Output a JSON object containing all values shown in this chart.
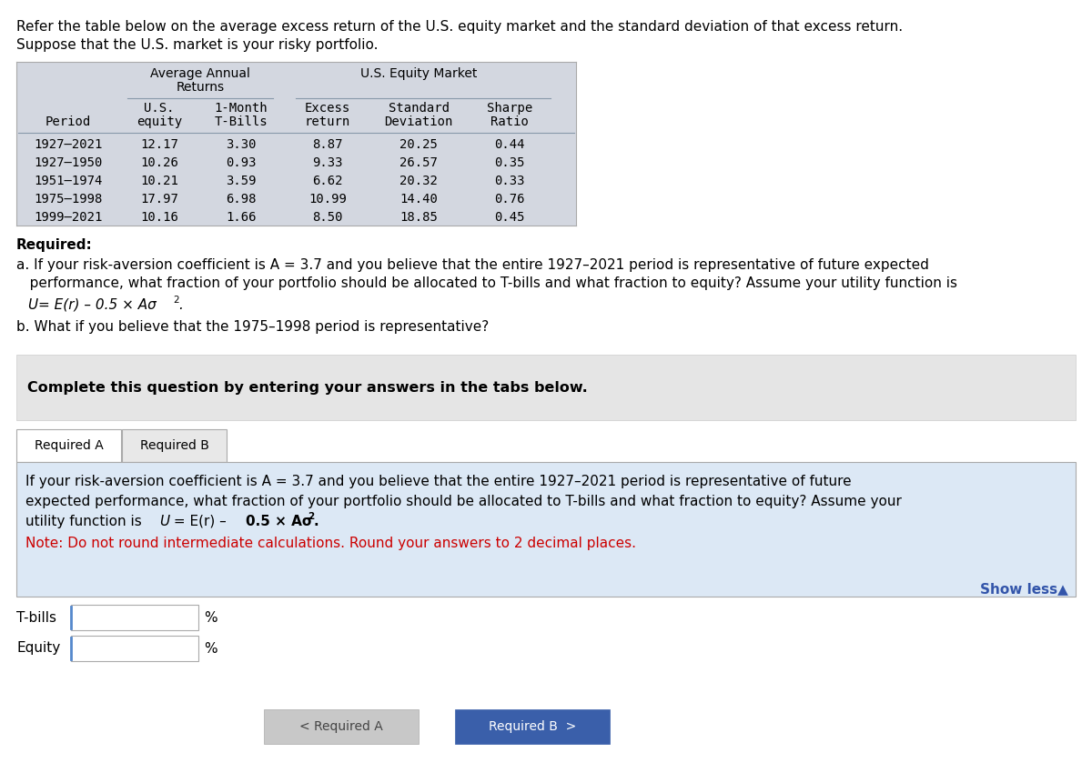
{
  "intro_line1": "Refer the table below on the average excess return of the U.S. equity market and the standard deviation of that excess return.",
  "intro_line2": "Suppose that the U.S. market is your risky portfolio.",
  "table_data": [
    [
      "1927–2021",
      "12.17",
      "3.30",
      "8.87",
      "20.25",
      "0.44"
    ],
    [
      "1927–1950",
      "10.26",
      "0.93",
      "9.33",
      "26.57",
      "0.35"
    ],
    [
      "1951–1974",
      "10.21",
      "3.59",
      "6.62",
      "20.32",
      "0.33"
    ],
    [
      "1975–1998",
      "17.97",
      "6.98",
      "10.99",
      "14.40",
      "0.76"
    ],
    [
      "1999–2021",
      "10.16",
      "1.66",
      "8.50",
      "18.85",
      "0.45"
    ]
  ],
  "req_a_line1": "a. If your risk-aversion coefficient is A = 3.7 and you believe that the entire 1927–2021 period is representative of future expected",
  "req_a_line2": "   performance, what fraction of your portfolio should be allocated to T-bills and what fraction to equity? Assume your utility function is",
  "req_b": "b. What if you believe that the 1975–1998 period is representative?",
  "complete_text": "Complete this question by entering your answers in the tabs below.",
  "panel_line1": "If your risk-aversion coefficient is A = 3.7 and you believe that the entire 1927–2021 period is representative of future",
  "panel_line2": "expected performance, what fraction of your portfolio should be allocated to T-bills and what fraction to equity? Assume your",
  "panel_line3_pre": "utility function is ",
  "panel_line3_u": "U",
  "panel_line3_mid": " = E(r) – ",
  "panel_line3_bold": "0.5 × Aσ",
  "panel_line3_sup": "2",
  "panel_line3_end": ".",
  "panel_note": "Note: Do not round intermediate calculations. Round your answers to 2 decimal places.",
  "show_less": "Show less▲",
  "tab_a": "Required A",
  "tab_b": "Required B",
  "btn_left": "< Required A",
  "btn_right": "Required B  >",
  "input_labels": [
    "T-bills",
    "Equity"
  ],
  "table_bg": "#d3d7e0",
  "panel_bg": "#dce8f5",
  "complete_bg": "#e5e5e5",
  "note_color": "#cc0000",
  "show_less_color": "#3355aa",
  "btn_left_bg": "#c8c8c8",
  "btn_right_bg": "#3a5faa",
  "btn_right_text": "#ffffff",
  "btn_left_text": "#444444",
  "separator_color": "#8899aa"
}
